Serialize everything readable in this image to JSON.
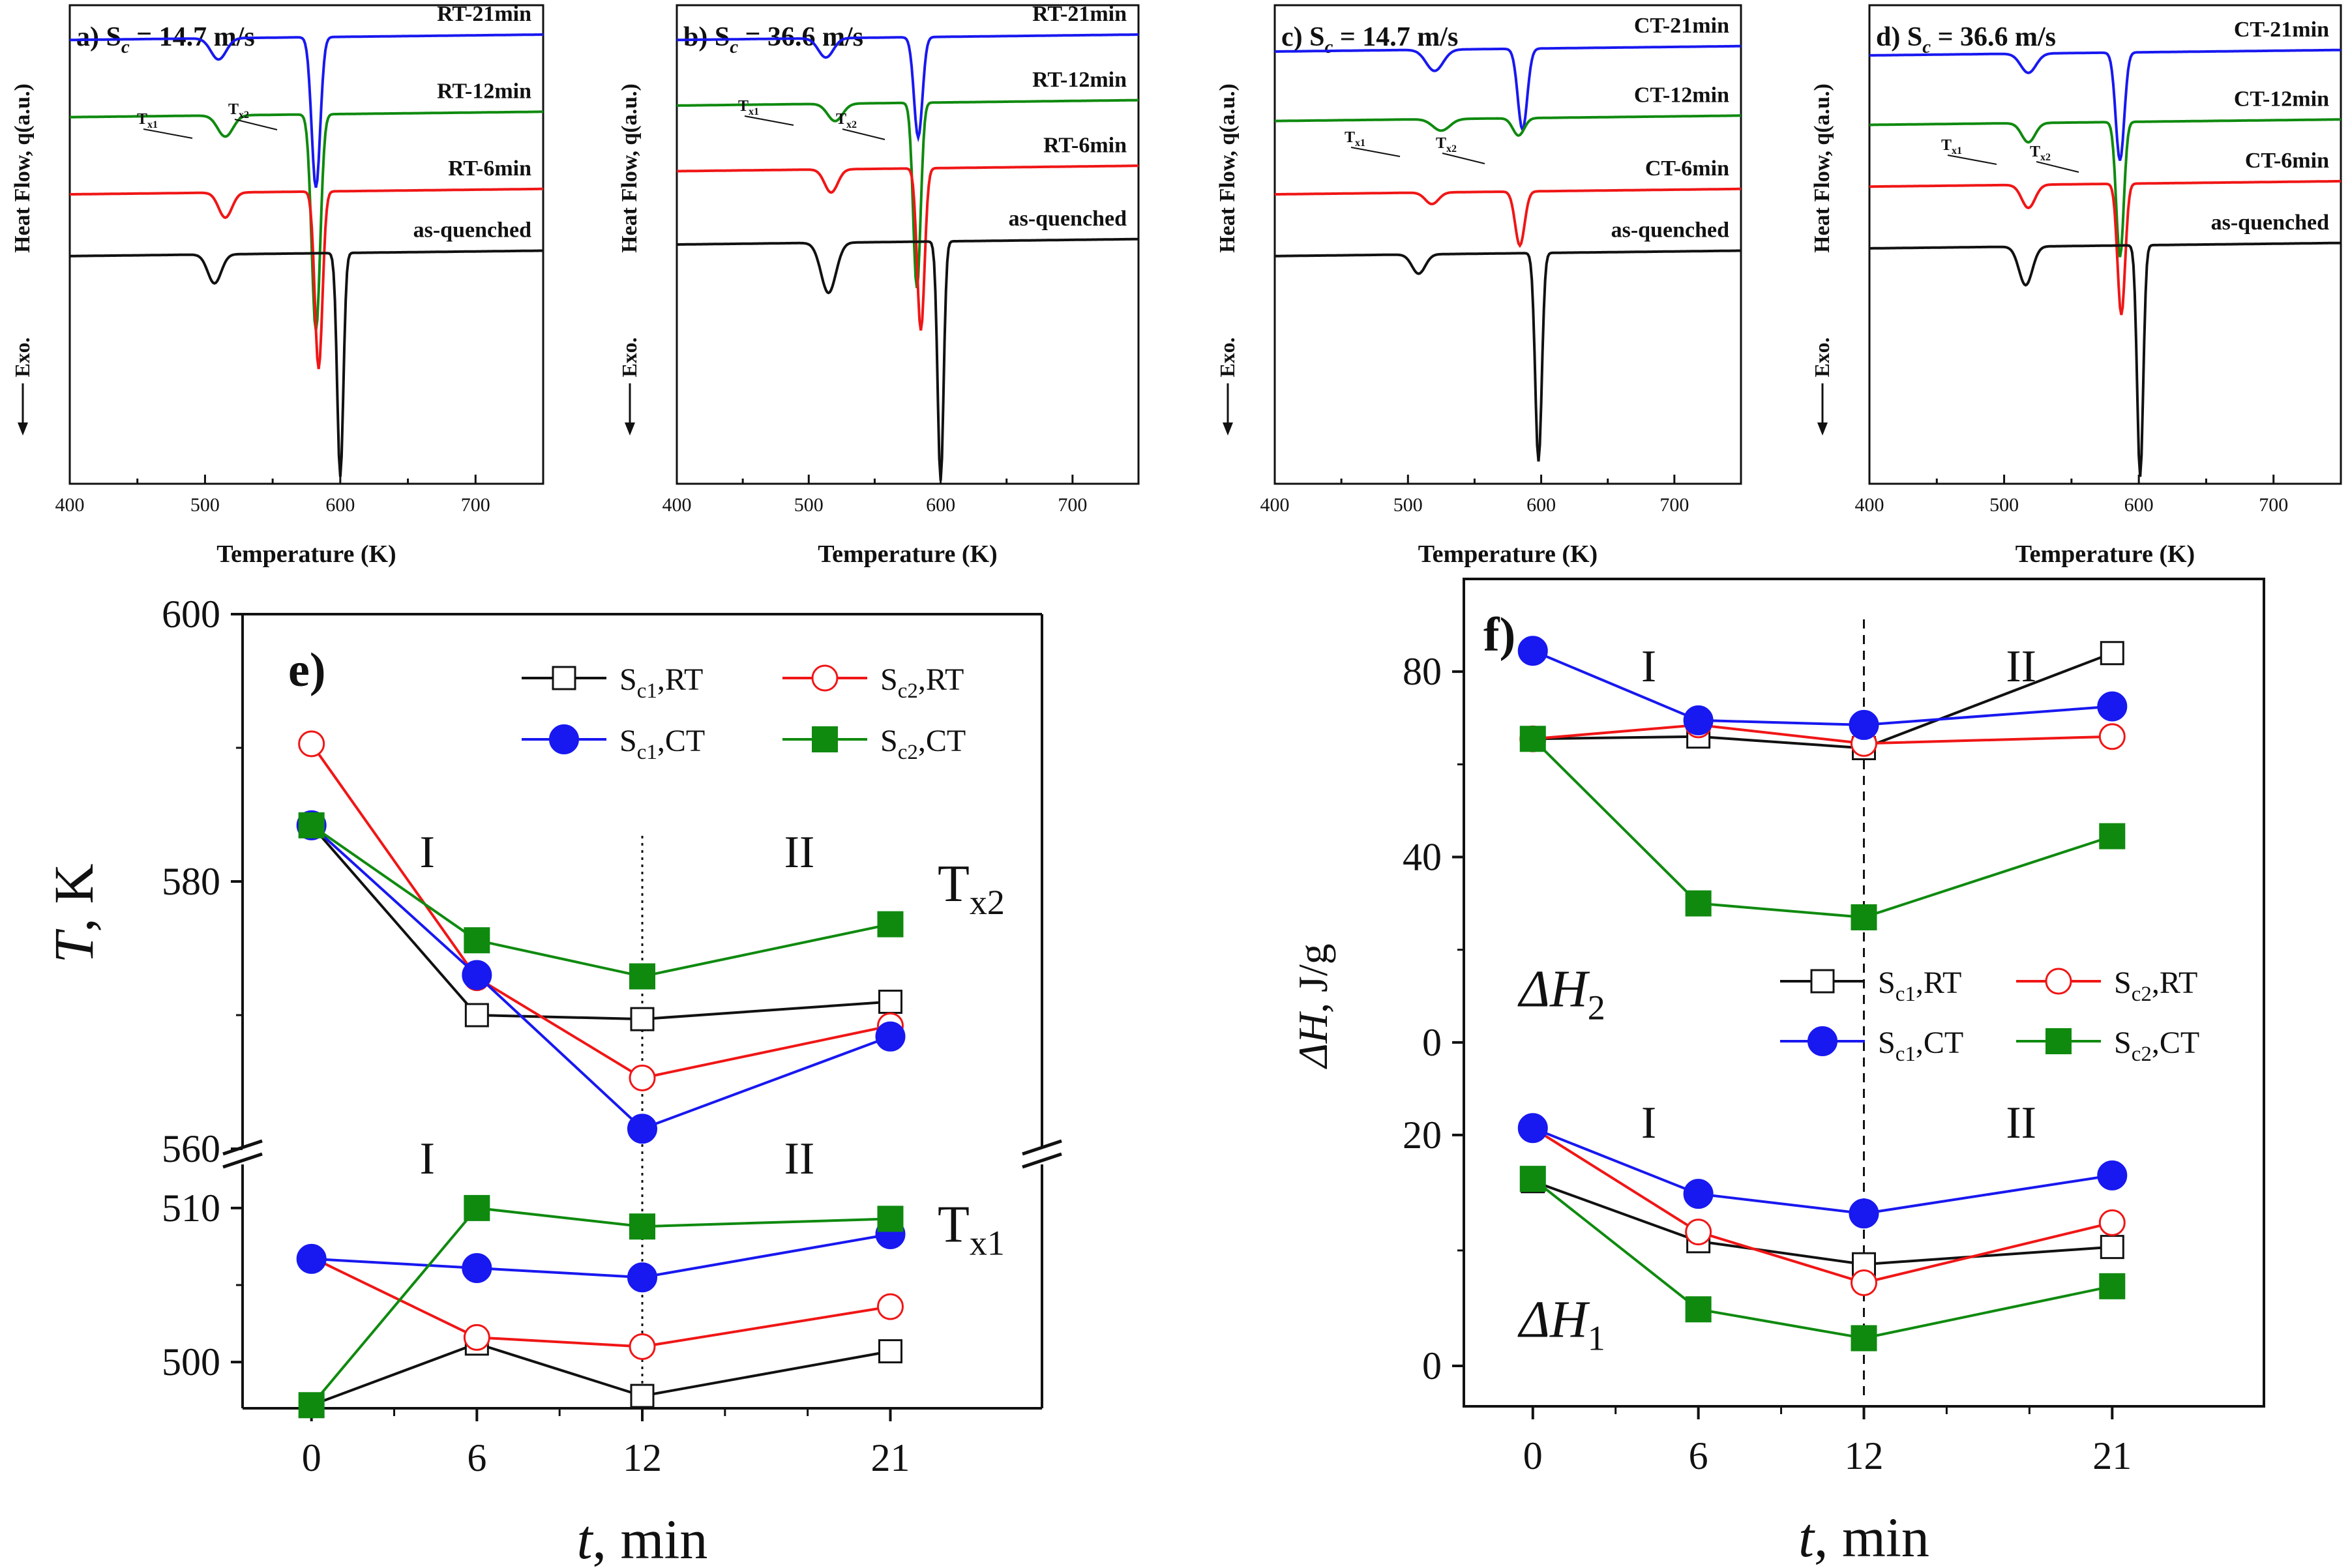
{
  "colors": {
    "black": "#111111",
    "red": "#f01616",
    "blue": "#1818f0",
    "green": "#0f8a0f"
  },
  "dsc_panels": [
    {
      "label": "a) S",
      "sub": "c",
      "speed": "= 14.7 m/s",
      "ylabel": "Heat Flow, q(a.u.)",
      "exo": "Exo.",
      "xlabel": "Temperature (K)",
      "xticks": [
        "400",
        "500",
        "600",
        "700"
      ],
      "xlim": [
        400,
        750
      ],
      "ylim": [
        -9,
        3.4
      ],
      "tx1": "x1",
      "tx2": "x2",
      "tx_letter": "T",
      "series": [
        {
          "name": "RT-21min",
          "color": "#1818f0",
          "base": 2.5,
          "tilt": 0.04,
          "d1": 0.55,
          "c1": 510,
          "w1": 8,
          "d2": 3.9,
          "c2": 582,
          "w2": 4.5
        },
        {
          "name": "RT-12min",
          "color": "#0f8a0f",
          "base": 0.5,
          "tilt": 0.04,
          "d1": 0.55,
          "c1": 515,
          "w1": 8,
          "d2": 5.6,
          "c2": 582,
          "w2": 4.5
        },
        {
          "name": "RT-6min",
          "color": "#f01616",
          "base": -1.5,
          "tilt": 0.04,
          "d1": 0.65,
          "c1": 515,
          "w1": 7,
          "d2": 4.6,
          "c2": 584,
          "w2": 4
        },
        {
          "name": "as-quenched",
          "color": "#111111",
          "base": -3.1,
          "tilt": 0.04,
          "d1": 0.75,
          "c1": 507,
          "w1": 7,
          "d2": 5.8,
          "c2": 600,
          "w2": 3.2
        }
      ]
    },
    {
      "label": "b) S",
      "sub": "c",
      "speed": "= 36.6 m/s",
      "ylabel": "Heat Flow, q(a.u.)",
      "exo": "Exo.",
      "xlabel": "Temperature (K)",
      "xticks": [
        "400",
        "500",
        "600",
        "700"
      ],
      "xlim": [
        400,
        750
      ],
      "ylim": [
        -9,
        3.4
      ],
      "tx1": "x1",
      "tx2": "x2",
      "tx_letter": "T",
      "series": [
        {
          "name": "RT-21min",
          "color": "#1818f0",
          "base": 2.5,
          "tilt": 0.04,
          "d1": 0.5,
          "c1": 513,
          "w1": 8,
          "d2": 2.6,
          "c2": 583,
          "w2": 4.5
        },
        {
          "name": "RT-12min",
          "color": "#0f8a0f",
          "base": 0.8,
          "tilt": 0.04,
          "d1": 0.45,
          "c1": 520,
          "w1": 8,
          "d2": 4.8,
          "c2": 582,
          "w2": 4
        },
        {
          "name": "RT-6min",
          "color": "#f01616",
          "base": -0.9,
          "tilt": 0.04,
          "d1": 0.6,
          "c1": 517,
          "w1": 7,
          "d2": 4.2,
          "c2": 585,
          "w2": 4
        },
        {
          "name": "as-quenched",
          "color": "#111111",
          "base": -2.8,
          "tilt": 0.04,
          "d1": 1.3,
          "c1": 515,
          "w1": 8,
          "d2": 6.2,
          "c2": 600,
          "w2": 3.2
        }
      ]
    },
    {
      "label": "c) S",
      "sub": "c",
      "speed": "= 14.7 m/s",
      "ylabel": "Heat Flow, q(a.u.)",
      "exo": "Exo.",
      "xlabel": "Temperature (K)",
      "xticks": [
        "400",
        "500",
        "600",
        "700"
      ],
      "xlim": [
        400,
        750
      ],
      "ylim": [
        -9,
        3.4
      ],
      "tx1": "x1",
      "tx2": "x2",
      "tx_letter": "T",
      "series": [
        {
          "name": "CT-21min",
          "color": "#1818f0",
          "base": 2.2,
          "tilt": 0.04,
          "d1": 0.55,
          "c1": 520,
          "w1": 9,
          "d2": 2.1,
          "c2": 586,
          "w2": 5
        },
        {
          "name": "CT-12min",
          "color": "#0f8a0f",
          "base": 0.4,
          "tilt": 0.04,
          "d1": 0.3,
          "c1": 525,
          "w1": 9,
          "d2": 0.45,
          "c2": 583,
          "w2": 6
        },
        {
          "name": "CT-6min",
          "color": "#f01616",
          "base": -1.5,
          "tilt": 0.04,
          "d1": 0.3,
          "c1": 518,
          "w1": 7,
          "d2": 1.4,
          "c2": 584,
          "w2": 5
        },
        {
          "name": "as-quenched",
          "color": "#111111",
          "base": -3.1,
          "tilt": 0.04,
          "d1": 0.5,
          "c1": 508,
          "w1": 7,
          "d2": 5.4,
          "c2": 598,
          "w2": 3.5
        }
      ]
    },
    {
      "label": "d) S",
      "sub": "c",
      "speed": "= 36.6 m/s",
      "ylabel": "Heat Flow, q(a.u.)",
      "exo": "Exo.",
      "xlabel": "Temperature (K)",
      "xticks": [
        "400",
        "500",
        "600",
        "700"
      ],
      "xlim": [
        400,
        750
      ],
      "ylim": [
        -9,
        3.4
      ],
      "tx1": "x1",
      "tx2": "x2",
      "tx_letter": "T",
      "series": [
        {
          "name": "CT-21min",
          "color": "#1818f0",
          "base": 2.1,
          "tilt": 0.04,
          "d1": 0.5,
          "c1": 518,
          "w1": 8,
          "d2": 2.8,
          "c2": 586,
          "w2": 4.5
        },
        {
          "name": "CT-12min",
          "color": "#0f8a0f",
          "base": 0.3,
          "tilt": 0.04,
          "d1": 0.5,
          "c1": 518,
          "w1": 7,
          "d2": 3.5,
          "c2": 586,
          "w2": 4
        },
        {
          "name": "CT-6min",
          "color": "#f01616",
          "base": -1.3,
          "tilt": 0.04,
          "d1": 0.6,
          "c1": 518,
          "w1": 7,
          "d2": 3.4,
          "c2": 587,
          "w2": 4
        },
        {
          "name": "as-quenched",
          "color": "#111111",
          "base": -2.9,
          "tilt": 0.04,
          "d1": 1.0,
          "c1": 516,
          "w1": 7,
          "d2": 6.0,
          "c2": 601,
          "w2": 3.2
        }
      ]
    }
  ],
  "chart_data": [
    {
      "type": "line",
      "panel": "e)",
      "title": "",
      "xlabel_italic": "t",
      "xlabel_rest": ", min",
      "ylabel_italic": "T",
      "ylabel_rest": ", K",
      "x": [
        0,
        6,
        12,
        21
      ],
      "xticks": [
        "0",
        "6",
        "12",
        "21"
      ],
      "upper": {
        "ylim": [
          560,
          600
        ],
        "yticks": [
          "560",
          "580",
          "600"
        ],
        "annotation_main": "T",
        "annotation_sub": "x2",
        "series": [
          {
            "name": "Sc1,RT",
            "values": [
              584.2,
              570.0,
              569.7,
              571.0
            ]
          },
          {
            "name": "Sc2,RT",
            "values": [
              590.3,
              572.8,
              565.3,
              569.2
            ]
          },
          {
            "name": "Sc1,CT",
            "values": [
              584.2,
              573.0,
              561.5,
              568.4
            ]
          },
          {
            "name": "Sc2,CT",
            "values": [
              584.2,
              575.6,
              572.9,
              576.8
            ]
          }
        ]
      },
      "lower": {
        "ylim": [
          497,
          513
        ],
        "yticks": [
          "500",
          "510"
        ],
        "annotation_main": "T",
        "annotation_sub": "x1",
        "series": [
          {
            "name": "Sc1,RT",
            "values": [
              497.2,
              501.2,
              497.8,
              500.7
            ]
          },
          {
            "name": "Sc2,RT",
            "values": [
              506.8,
              501.6,
              501.0,
              503.6
            ]
          },
          {
            "name": "Sc1,CT",
            "values": [
              506.7,
              506.1,
              505.5,
              508.3
            ]
          },
          {
            "name": "Sc2,CT",
            "values": [
              497.2,
              510.0,
              508.8,
              509.3
            ]
          }
        ]
      },
      "regions": [
        "I",
        "II"
      ],
      "legend": [
        {
          "main": "S",
          "sub": "c1",
          "rest": ",RT"
        },
        {
          "main": "S",
          "sub": "c2",
          "rest": ",RT"
        },
        {
          "main": "S",
          "sub": "c1",
          "rest": ",CT"
        },
        {
          "main": "S",
          "sub": "c2",
          "rest": ",CT"
        }
      ]
    },
    {
      "type": "line",
      "panel": "f)",
      "title": "",
      "xlabel_italic": "t",
      "xlabel_rest": ", min",
      "ylabel_main": "ΔH",
      "ylabel_rest": ", J/g",
      "x": [
        0,
        6,
        12,
        21
      ],
      "xticks": [
        "0",
        "6",
        "12",
        "21"
      ],
      "upper": {
        "ylim": [
          -10,
          100
        ],
        "yticks": [
          "0",
          "40",
          "80"
        ],
        "annotation_main": "ΔH",
        "annotation_sub": "2",
        "series": [
          {
            "name": "Sc1,RT",
            "values": [
              65.5,
              66.0,
              63.5,
              84.0
            ]
          },
          {
            "name": "Sc2,RT",
            "values": [
              65.5,
              68.5,
              64.5,
              66.0
            ]
          },
          {
            "name": "Sc1,CT",
            "values": [
              84.5,
              69.5,
              68.5,
              72.5
            ]
          },
          {
            "name": "Sc2,CT",
            "values": [
              65.5,
              30.0,
              27.0,
              44.5
            ]
          }
        ]
      },
      "lower": {
        "ylim": [
          -3.5,
          24
        ],
        "yticks": [
          "0",
          "20"
        ],
        "annotation_main": "ΔH",
        "annotation_sub": "1",
        "series": [
          {
            "name": "Sc1,RT",
            "values": [
              16.0,
              10.8,
              8.8,
              10.3
            ]
          },
          {
            "name": "Sc2,RT",
            "values": [
              20.6,
              11.6,
              7.2,
              12.4
            ]
          },
          {
            "name": "Sc1,CT",
            "values": [
              20.6,
              14.9,
              13.2,
              16.5
            ]
          },
          {
            "name": "Sc2,CT",
            "values": [
              16.2,
              4.9,
              2.4,
              6.9
            ]
          }
        ]
      },
      "regions": [
        "I",
        "II"
      ],
      "legend": [
        {
          "main": "S",
          "sub": "c1",
          "rest": ",RT"
        },
        {
          "main": "S",
          "sub": "c2",
          "rest": ",RT"
        },
        {
          "main": "S",
          "sub": "c1",
          "rest": ",CT"
        },
        {
          "main": "S",
          "sub": "c2",
          "rest": ",CT"
        }
      ]
    }
  ]
}
